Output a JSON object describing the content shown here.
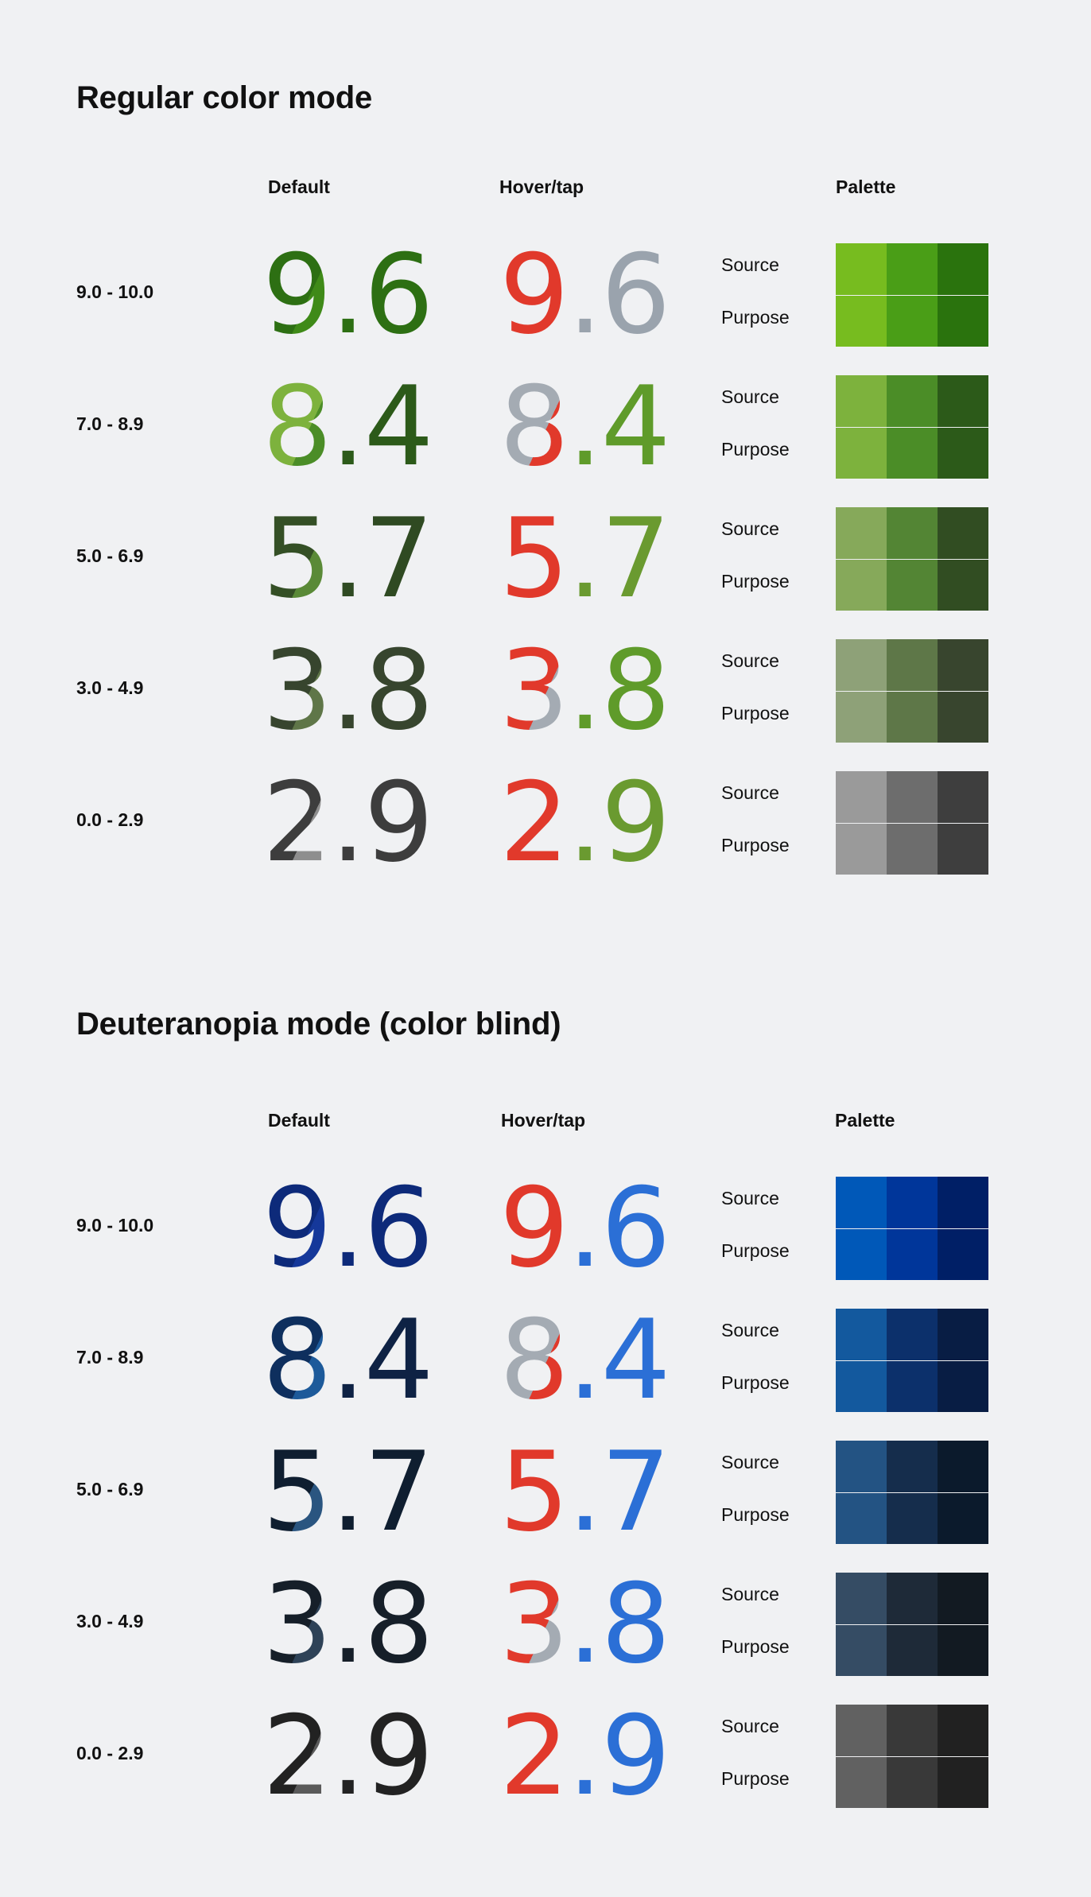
{
  "sections": [
    {
      "title": "Regular color mode",
      "headers": {
        "default": "Default",
        "hover": "Hover/tap",
        "palette": "Palette"
      },
      "rows": [
        {
          "range": "9.0 - 10.0",
          "score": "9.6",
          "source": "Source",
          "purpose": "Purpose",
          "default_colors": [
            "#2d6f13",
            "#3f8a18",
            "#2d6f13"
          ],
          "hover_colors": [
            "#e1392b",
            "#e1392b",
            "#9aa3ad"
          ],
          "palette": [
            "#77bc1f",
            "#4a9e17",
            "#2a730d",
            "#77bc1f",
            "#4a9e17",
            "#2a730d"
          ]
        },
        {
          "range": "7.0 - 8.9",
          "score": "8.4",
          "source": "Source",
          "purpose": "Purpose",
          "default_colors": [
            "#7db23d",
            "#4b8d27",
            "#2c5a19"
          ],
          "hover_colors": [
            "#a4abb3",
            "#e1392b",
            "#5f9b2a"
          ],
          "palette": [
            "#7db23d",
            "#4b8d27",
            "#2c5a19",
            "#7db23d",
            "#4b8d27",
            "#2c5a19"
          ]
        },
        {
          "range": "5.0 - 6.9",
          "score": "5.7",
          "source": "Source",
          "purpose": "Purpose",
          "default_colors": [
            "#344f25",
            "#5a8a37",
            "#2f4a22"
          ],
          "hover_colors": [
            "#e1392b",
            "#e1392b",
            "#6a9a30"
          ],
          "palette": [
            "#86a95a",
            "#538534",
            "#314d22",
            "#86a95a",
            "#538534",
            "#314d22"
          ]
        },
        {
          "range": "3.0 - 4.9",
          "score": "3.8",
          "source": "Source",
          "purpose": "Purpose",
          "default_colors": [
            "#37452e",
            "#5f7648",
            "#37452e"
          ],
          "hover_colors": [
            "#e1392b",
            "#a4abb3",
            "#5f9b2a"
          ],
          "palette": [
            "#8ea178",
            "#5e7748",
            "#38452e",
            "#8ea178",
            "#5e7748",
            "#38452e"
          ]
        },
        {
          "range": "0.0 - 2.9",
          "score": "2.9",
          "source": "Source",
          "purpose": "Purpose",
          "default_colors": [
            "#3d3d3d",
            "#8e8e8e",
            "#3d3d3d"
          ],
          "hover_colors": [
            "#e1392b",
            "#e1392b",
            "#6a9a30"
          ],
          "palette": [
            "#9a9a9a",
            "#6d6d6d",
            "#3e3e3e",
            "#9a9a9a",
            "#6d6d6d",
            "#3e3e3e"
          ]
        }
      ]
    },
    {
      "title": "Deuteranopia mode (color blind)",
      "headers": {
        "default": "Default",
        "hover": "Hover/tap",
        "palette": "Palette"
      },
      "rows": [
        {
          "range": "9.0 - 10.0",
          "score": "9.6",
          "source": "Source",
          "purpose": "Purpose",
          "default_colors": [
            "#0d2a7a",
            "#15389a",
            "#0d2a7a"
          ],
          "hover_colors": [
            "#e1392b",
            "#e1392b",
            "#2b6fd6"
          ],
          "palette": [
            "#0058b8",
            "#00369a",
            "#001f66",
            "#0058b8",
            "#00369a",
            "#001f66"
          ]
        },
        {
          "range": "7.0 - 8.9",
          "score": "8.4",
          "source": "Source",
          "purpose": "Purpose",
          "default_colors": [
            "#0e2f5e",
            "#1d5a9a",
            "#0e2244"
          ],
          "hover_colors": [
            "#a4abb3",
            "#e1392b",
            "#2b6fd6"
          ],
          "palette": [
            "#13599e",
            "#0c306b",
            "#081d44",
            "#13599e",
            "#0c306b",
            "#081d44"
          ]
        },
        {
          "range": "5.0 - 6.9",
          "score": "5.7",
          "source": "Source",
          "purpose": "Purpose",
          "default_colors": [
            "#0f1e30",
            "#2a5580",
            "#0f1e30"
          ],
          "hover_colors": [
            "#e1392b",
            "#e1392b",
            "#2b6fd6"
          ],
          "palette": [
            "#235383",
            "#152d4c",
            "#0b1a2c",
            "#235383",
            "#152d4c",
            "#0b1a2c"
          ]
        },
        {
          "range": "3.0 - 4.9",
          "score": "3.8",
          "source": "Source",
          "purpose": "Purpose",
          "default_colors": [
            "#161f29",
            "#2e4257",
            "#161f29"
          ],
          "hover_colors": [
            "#e1392b",
            "#a4abb3",
            "#2b6fd6"
          ],
          "palette": [
            "#354c64",
            "#1e2a38",
            "#121a22",
            "#354c64",
            "#1e2a38",
            "#121a22"
          ]
        },
        {
          "range": "0.0 - 2.9",
          "score": "2.9",
          "source": "Source",
          "purpose": "Purpose",
          "default_colors": [
            "#222222",
            "#5a5a5a",
            "#222222"
          ],
          "hover_colors": [
            "#e1392b",
            "#e1392b",
            "#2b6fd6"
          ],
          "palette": [
            "#616161",
            "#393939",
            "#212121",
            "#616161",
            "#393939",
            "#212121"
          ]
        }
      ]
    }
  ]
}
